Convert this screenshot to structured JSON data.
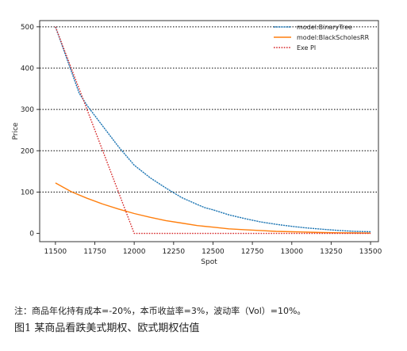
{
  "chart_data": {
    "type": "line",
    "xlabel": "Spot",
    "ylabel": "Price",
    "xlim": [
      11400,
      13550
    ],
    "ylim": [
      -20,
      515
    ],
    "xticks": [
      11500,
      11750,
      12000,
      12250,
      12500,
      12750,
      13000,
      13250,
      13500
    ],
    "yticks": [
      0,
      100,
      200,
      300,
      400,
      500
    ],
    "grid": "horizontal-dotted",
    "legend_position": "top-right",
    "series": [
      {
        "name": "model:BinaryTree",
        "color": "#1f77b4",
        "style": "solid-dotted",
        "x": [
          11500,
          11650,
          11700,
          11800,
          11900,
          12000,
          12050,
          12100,
          12200,
          12300,
          12400,
          12450,
          12500,
          12600,
          12700,
          12800,
          12900,
          13000,
          13100,
          13200,
          13300,
          13400,
          13500
        ],
        "y": [
          500,
          340,
          310,
          260,
          210,
          165,
          150,
          135,
          110,
          87,
          70,
          62,
          57,
          45,
          36,
          28,
          22,
          17,
          13,
          10,
          7,
          5,
          4
        ]
      },
      {
        "name": "model:BlackScholesRR",
        "color": "#ff7f0e",
        "style": "solid",
        "x": [
          11500,
          11600,
          11700,
          11800,
          11900,
          12000,
          12100,
          12200,
          12300,
          12400,
          12500,
          12600,
          12700,
          12800,
          12900,
          13000,
          13100,
          13200,
          13300,
          13400,
          13500
        ],
        "y": [
          122,
          101,
          85,
          71,
          59,
          48,
          39,
          31,
          25,
          19,
          15,
          11,
          9,
          7,
          5,
          4,
          3,
          2,
          1.5,
          1,
          0.8
        ]
      },
      {
        "name": "Exe Pl",
        "color": "#d62728",
        "style": "dotted",
        "x": [
          11500,
          11650,
          12000,
          12500,
          13000,
          13500
        ],
        "y": [
          500,
          350,
          0,
          0,
          0,
          0
        ]
      }
    ]
  },
  "caption": {
    "note": "注：商品年化持有成本=-20%，本币收益率=3%，波动率（Vol）=10%。",
    "figure": "图1 某商品看跌美式期权、欧式期权估值"
  }
}
